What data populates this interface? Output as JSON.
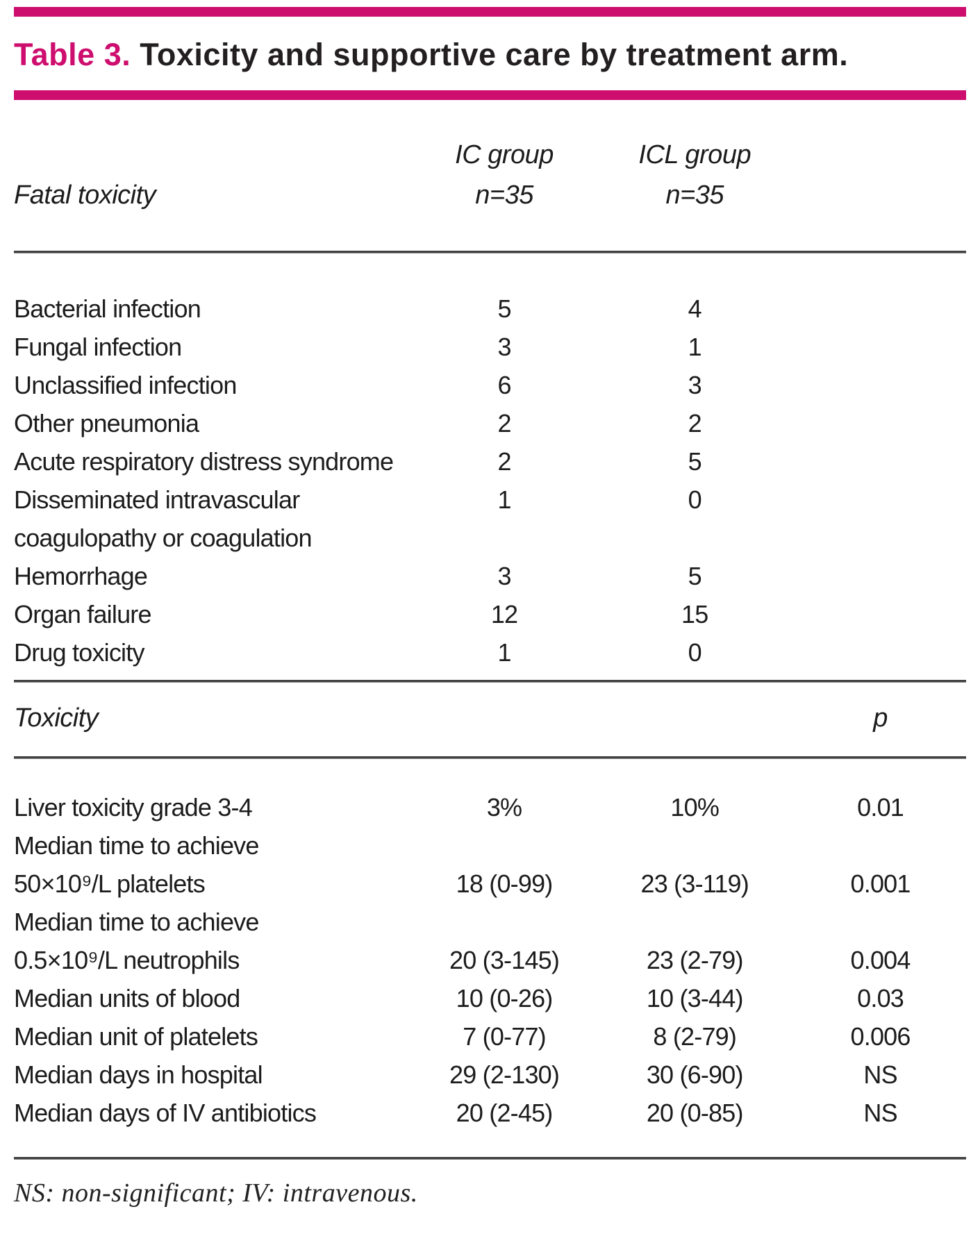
{
  "title": {
    "label": "Table 3.",
    "text": "Toxicity and supportive care by treatment arm."
  },
  "colors": {
    "accent_pink": "#ce0e6e",
    "text": "#231f20",
    "rule": "#414141"
  },
  "section_fatal": {
    "row_header": "Fatal toxicity",
    "col_headers": [
      {
        "line1": "IC group",
        "line2": "n=35"
      },
      {
        "line1": "ICL group",
        "line2": "n=35"
      }
    ],
    "rows": [
      {
        "label": "Bacterial infection",
        "ic": "5",
        "icl": "4",
        "p": ""
      },
      {
        "label": "Fungal infection",
        "ic": "3",
        "icl": "1",
        "p": ""
      },
      {
        "label": "Unclassified infection",
        "ic": "6",
        "icl": "3",
        "p": ""
      },
      {
        "label": "Other pneumonia",
        "ic": "2",
        "icl": "2",
        "p": ""
      },
      {
        "label": "Acute respiratory distress syndrome",
        "ic": "2",
        "icl": "5",
        "p": ""
      },
      {
        "label": "Disseminated intravascular",
        "ic": "1",
        "icl": "0",
        "p": ""
      },
      {
        "label": "coagulopathy or coagulation",
        "ic": "",
        "icl": "",
        "p": ""
      },
      {
        "label": "Hemorrhage",
        "ic": "3",
        "icl": "5",
        "p": ""
      },
      {
        "label": "Organ failure",
        "ic": "12",
        "icl": "15",
        "p": ""
      },
      {
        "label": "Drug toxicity",
        "ic": "1",
        "icl": "0",
        "p": ""
      }
    ]
  },
  "section_toxicity": {
    "row_header": "Toxicity",
    "p_header": "p",
    "rows": [
      {
        "label": "Liver toxicity grade 3-4",
        "ic": "3%",
        "icl": "10%",
        "p": "0.01"
      },
      {
        "label": "Median time to achieve",
        "ic": "",
        "icl": "",
        "p": ""
      },
      {
        "label": "50×10⁹/L platelets",
        "ic": "18 (0-99)",
        "icl": "23 (3-119)",
        "p": "0.001"
      },
      {
        "label": "Median time to achieve",
        "ic": "",
        "icl": "",
        "p": ""
      },
      {
        "label": "0.5×10⁹/L neutrophils",
        "ic": "20 (3-145)",
        "icl": "23 (2-79)",
        "p": "0.004"
      },
      {
        "label": "Median units of blood",
        "ic": "10 (0-26)",
        "icl": "10 (3-44)",
        "p": "0.03"
      },
      {
        "label": "Median unit of platelets",
        "ic": "7 (0-77)",
        "icl": "8 (2-79)",
        "p": "0.006"
      },
      {
        "label": "Median days in hospital",
        "ic": "29 (2-130)",
        "icl": "30 (6-90)",
        "p": "NS"
      },
      {
        "label": "Median days of IV antibiotics",
        "ic": "20 (2-45)",
        "icl": "20 (0-85)",
        "p": "NS"
      }
    ]
  },
  "footnote": "NS: non-significant; IV: intravenous."
}
